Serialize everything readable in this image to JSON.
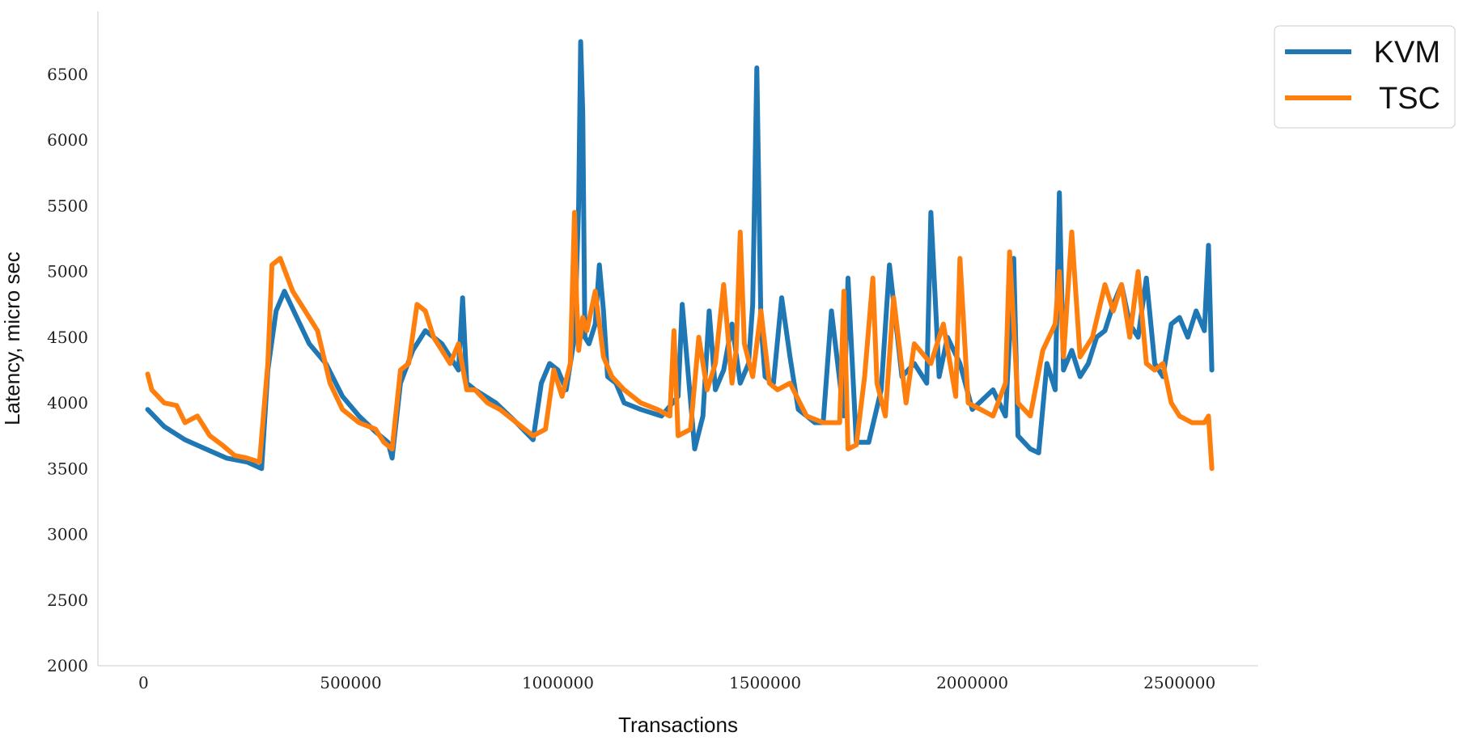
{
  "chart_data": {
    "type": "line",
    "title": "",
    "xlabel": "Transactions",
    "ylabel": "Latency, micro sec",
    "xlim": [
      -110000,
      2690000
    ],
    "ylim": [
      2000,
      6980
    ],
    "xticks": [
      0,
      500000,
      1000000,
      1500000,
      2000000,
      2500000
    ],
    "xtick_labels": [
      "0",
      "500000",
      "1000000",
      "1500000",
      "2000000",
      "2500000"
    ],
    "yticks": [
      2000,
      2500,
      3000,
      3500,
      4000,
      4500,
      5000,
      5500,
      6000,
      6500
    ],
    "ytick_labels": [
      "2000",
      "2500",
      "3000",
      "3500",
      "4000",
      "4500",
      "5000",
      "5500",
      "6000",
      "6500"
    ],
    "grid": false,
    "legend": "top-right",
    "series": [
      {
        "name": "KVM",
        "color": "#1f77b4",
        "x": [
          10000,
          50000,
          100000,
          150000,
          200000,
          250000,
          285000,
          300000,
          320000,
          340000,
          370000,
          400000,
          440000,
          480000,
          520000,
          560000,
          590000,
          600000,
          620000,
          650000,
          680000,
          720000,
          760000,
          770000,
          780000,
          800000,
          850000,
          900000,
          940000,
          960000,
          980000,
          1000000,
          1020000,
          1040000,
          1050000,
          1055000,
          1060000,
          1065000,
          1075000,
          1090000,
          1100000,
          1110000,
          1120000,
          1140000,
          1160000,
          1200000,
          1250000,
          1290000,
          1300000,
          1330000,
          1350000,
          1365000,
          1380000,
          1400000,
          1420000,
          1440000,
          1460000,
          1470000,
          1480000,
          1490000,
          1500000,
          1520000,
          1540000,
          1560000,
          1580000,
          1600000,
          1620000,
          1640000,
          1660000,
          1690000,
          1700000,
          1720000,
          1750000,
          1780000,
          1800000,
          1830000,
          1860000,
          1890000,
          1900000,
          1920000,
          1940000,
          1970000,
          2000000,
          2050000,
          2080000,
          2100000,
          2110000,
          2140000,
          2160000,
          2180000,
          2200000,
          2210000,
          2220000,
          2240000,
          2260000,
          2280000,
          2300000,
          2320000,
          2340000,
          2360000,
          2380000,
          2400000,
          2420000,
          2440000,
          2460000,
          2480000,
          2500000,
          2520000,
          2540000,
          2560000,
          2570000,
          2578000
        ],
        "y": [
          3950,
          3820,
          3720,
          3650,
          3580,
          3550,
          3500,
          4250,
          4700,
          4850,
          4650,
          4450,
          4300,
          4050,
          3900,
          3780,
          3700,
          3580,
          4150,
          4400,
          4550,
          4450,
          4250,
          4800,
          4150,
          4100,
          4000,
          3850,
          3720,
          4150,
          4300,
          4250,
          4100,
          4500,
          5500,
          6750,
          6200,
          4500,
          4450,
          4600,
          5050,
          4700,
          4200,
          4150,
          4000,
          3950,
          3900,
          4050,
          4750,
          3650,
          3900,
          4700,
          4100,
          4250,
          4600,
          4150,
          4300,
          4750,
          6550,
          4600,
          4200,
          4150,
          4800,
          4350,
          3950,
          3900,
          3850,
          3850,
          4700,
          3900,
          4950,
          3700,
          3700,
          4100,
          5050,
          4200,
          4300,
          4150,
          5450,
          4200,
          4500,
          4300,
          3950,
          4100,
          3900,
          5100,
          3750,
          3650,
          3620,
          4300,
          4100,
          5600,
          4250,
          4400,
          4200,
          4300,
          4500,
          4550,
          4750,
          4900,
          4600,
          4500,
          4950,
          4300,
          4200,
          4600,
          4650,
          4500,
          4700,
          4550,
          5200,
          4250
        ],
        "markers": false
      },
      {
        "name": "TSC",
        "color": "#ff7f0e",
        "x": [
          10000,
          20000,
          50000,
          80000,
          100000,
          130000,
          160000,
          190000,
          220000,
          250000,
          280000,
          300000,
          310000,
          330000,
          360000,
          390000,
          420000,
          450000,
          480000,
          520000,
          560000,
          580000,
          600000,
          620000,
          640000,
          660000,
          680000,
          700000,
          720000,
          740000,
          760000,
          780000,
          800000,
          830000,
          860000,
          900000,
          940000,
          970000,
          990000,
          1010000,
          1030000,
          1040000,
          1045000,
          1050000,
          1060000,
          1070000,
          1090000,
          1110000,
          1130000,
          1160000,
          1200000,
          1240000,
          1270000,
          1280000,
          1290000,
          1320000,
          1340000,
          1360000,
          1380000,
          1400000,
          1420000,
          1430000,
          1440000,
          1450000,
          1470000,
          1490000,
          1510000,
          1530000,
          1560000,
          1600000,
          1640000,
          1680000,
          1690000,
          1700000,
          1720000,
          1740000,
          1760000,
          1770000,
          1790000,
          1810000,
          1840000,
          1860000,
          1900000,
          1930000,
          1960000,
          1970000,
          1990000,
          2020000,
          2050000,
          2080000,
          2090000,
          2110000,
          2140000,
          2170000,
          2200000,
          2210000,
          2220000,
          2240000,
          2260000,
          2290000,
          2320000,
          2340000,
          2360000,
          2380000,
          2400000,
          2420000,
          2440000,
          2460000,
          2480000,
          2500000,
          2530000,
          2560000,
          2570000,
          2578000
        ],
        "y": [
          4220,
          4100,
          4000,
          3980,
          3850,
          3900,
          3750,
          3680,
          3600,
          3580,
          3550,
          4300,
          5050,
          5100,
          4850,
          4700,
          4550,
          4150,
          3950,
          3850,
          3800,
          3700,
          3650,
          4250,
          4300,
          4750,
          4700,
          4500,
          4400,
          4300,
          4450,
          4100,
          4100,
          4000,
          3950,
          3850,
          3750,
          3800,
          4250,
          4050,
          4300,
          5450,
          4800,
          4400,
          4650,
          4550,
          4850,
          4350,
          4200,
          4100,
          4000,
          3950,
          3900,
          4550,
          3750,
          3800,
          4500,
          4100,
          4300,
          4900,
          4150,
          4400,
          5300,
          4450,
          4200,
          4700,
          4150,
          4100,
          4150,
          3900,
          3850,
          3850,
          4850,
          3650,
          3680,
          4200,
          4950,
          4150,
          3900,
          4800,
          4000,
          4450,
          4300,
          4600,
          4050,
          5100,
          4000,
          3950,
          3900,
          4150,
          5150,
          4000,
          3900,
          4400,
          4600,
          5000,
          4350,
          5300,
          4350,
          4500,
          4900,
          4700,
          4900,
          4500,
          5000,
          4300,
          4250,
          4300,
          4000,
          3900,
          3850,
          3850,
          3900,
          3500
        ]
      }
    ]
  }
}
